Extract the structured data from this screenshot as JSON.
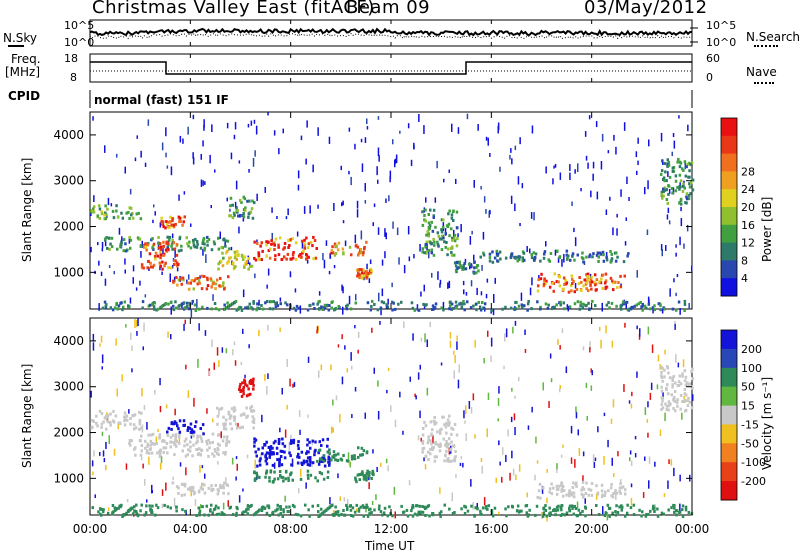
{
  "header": {
    "station": "Christmas Valley East (fitACF)",
    "beam": "Beam 09",
    "date": "03/May/2012"
  },
  "panels": {
    "nsky_label": "N.Sky",
    "nsearch_label": "N.Search",
    "nsky_ticks": [
      "10^5",
      "10^0"
    ],
    "nsearch_ticks": [
      "10^5",
      "10^0"
    ],
    "freq_label_1": "Freq.",
    "freq_label_2": "[MHz]",
    "freq_ticks": [
      "18",
      "8"
    ],
    "nave_label": "Nave",
    "nave_ticks": [
      "60",
      "0"
    ],
    "cpid_label": "CPID",
    "cpid_value": "normal (fast) 151 IF"
  },
  "chart_data": [
    {
      "type": "heatmap",
      "title": "",
      "xlabel": "",
      "ylabel": "Slant Range [km]",
      "yticks": [
        "1000",
        "2000",
        "3000",
        "4000"
      ],
      "ylim": [
        200,
        4500
      ],
      "xlim": [
        0,
        24
      ],
      "colorbar_label": "Power [dB]",
      "colorbar_ticks": [
        "4",
        "8",
        "12",
        "16",
        "20",
        "24",
        "28"
      ],
      "colorbar_colors": [
        "#1010e0",
        "#2848b0",
        "#2e7a6a",
        "#40a040",
        "#90c030",
        "#e0d020",
        "#f0a020",
        "#f07020",
        "#e83818",
        "#e81010"
      ],
      "bands": [
        {
          "t0": 0.0,
          "t1": 2.0,
          "r0": 2200,
          "r1": 2500,
          "level": 10
        },
        {
          "t0": 0.5,
          "t1": 5.5,
          "r0": 1500,
          "r1": 1800,
          "level": 8
        },
        {
          "t0": 2.0,
          "t1": 3.5,
          "r0": 1100,
          "r1": 1700,
          "level": 24
        },
        {
          "t0": 2.8,
          "t1": 3.8,
          "r0": 2000,
          "r1": 2250,
          "level": 24
        },
        {
          "t0": 3.2,
          "t1": 5.5,
          "r0": 650,
          "r1": 950,
          "level": 22
        },
        {
          "t0": 5.0,
          "t1": 6.5,
          "r0": 1100,
          "r1": 1500,
          "level": 14
        },
        {
          "t0": 5.5,
          "t1": 6.5,
          "r0": 2200,
          "r1": 2700,
          "level": 8
        },
        {
          "t0": 6.5,
          "t1": 9.0,
          "r0": 1300,
          "r1": 1800,
          "level": 26
        },
        {
          "t0": 9.5,
          "t1": 11.0,
          "r0": 1400,
          "r1": 1700,
          "level": 22
        },
        {
          "t0": 10.6,
          "t1": 11.2,
          "r0": 900,
          "r1": 1100,
          "level": 24
        },
        {
          "t0": 13.2,
          "t1": 14.6,
          "r0": 1400,
          "r1": 2400,
          "level": 8
        },
        {
          "t0": 14.5,
          "t1": 15.5,
          "r0": 1000,
          "r1": 1300,
          "level": 6
        },
        {
          "t0": 17.8,
          "t1": 21.3,
          "r0": 600,
          "r1": 1000,
          "level": 24
        },
        {
          "t0": 15.5,
          "t1": 21.5,
          "r0": 1250,
          "r1": 1500,
          "level": 6
        },
        {
          "t0": 22.7,
          "t1": 24.0,
          "r0": 2500,
          "r1": 3500,
          "level": 8
        },
        {
          "t0": 0.0,
          "t1": 24.0,
          "r0": 200,
          "r1": 400,
          "level": 6
        }
      ]
    },
    {
      "type": "heatmap",
      "title": "",
      "xlabel": "Time UT",
      "ylabel": "Slant Range [km]",
      "yticks": [
        "1000",
        "2000",
        "3000",
        "4000"
      ],
      "xticks": [
        "00:00",
        "04:00",
        "08:00",
        "12:00",
        "16:00",
        "20:00",
        "00:00"
      ],
      "ylim": [
        200,
        4500
      ],
      "xlim": [
        0,
        24
      ],
      "colorbar_label": "Velocity [m s⁻¹]",
      "colorbar_ticks": [
        "200",
        "100",
        "50",
        "15",
        "-15",
        "-50",
        "-100",
        "-200"
      ],
      "colorbar_colors": [
        "#1414d8",
        "#2848b8",
        "#2e8a58",
        "#60b840",
        "#c8c8c8",
        "#f0c020",
        "#f08020",
        "#e84018",
        "#e01010"
      ],
      "bands": [
        {
          "t0": 0.0,
          "t1": 2.0,
          "r0": 2100,
          "r1": 2500,
          "level": 0
        },
        {
          "t0": 1.5,
          "t1": 5.5,
          "r0": 1500,
          "r1": 2000,
          "level": 0
        },
        {
          "t0": 3.0,
          "t1": 4.5,
          "r0": 2000,
          "r1": 2300,
          "level": 180
        },
        {
          "t0": 3.2,
          "t1": 5.5,
          "r0": 650,
          "r1": 950,
          "level": 0
        },
        {
          "t0": 5.0,
          "t1": 6.5,
          "r0": 2100,
          "r1": 2600,
          "level": 0
        },
        {
          "t0": 6.5,
          "t1": 9.5,
          "r0": 1300,
          "r1": 1900,
          "level": 180
        },
        {
          "t0": 9.0,
          "t1": 11.0,
          "r0": 1400,
          "r1": 1700,
          "level": 60
        },
        {
          "t0": 6.5,
          "t1": 9.5,
          "r0": 950,
          "r1": 1200,
          "level": 40
        },
        {
          "t0": 10.5,
          "t1": 11.3,
          "r0": 950,
          "r1": 1200,
          "level": 40
        },
        {
          "t0": 13.2,
          "t1": 14.6,
          "r0": 1400,
          "r1": 2400,
          "level": 0
        },
        {
          "t0": 17.8,
          "t1": 21.3,
          "r0": 600,
          "r1": 950,
          "level": 0
        },
        {
          "t0": 22.7,
          "t1": 24.0,
          "r0": 2500,
          "r1": 3500,
          "level": 0
        },
        {
          "t0": 5.9,
          "t1": 6.5,
          "r0": 2800,
          "r1": 3200,
          "level": -200
        },
        {
          "t0": 0.0,
          "t1": 24.0,
          "r0": 200,
          "r1": 450,
          "level": 40
        }
      ]
    }
  ],
  "xaxis_label": "Time UT"
}
